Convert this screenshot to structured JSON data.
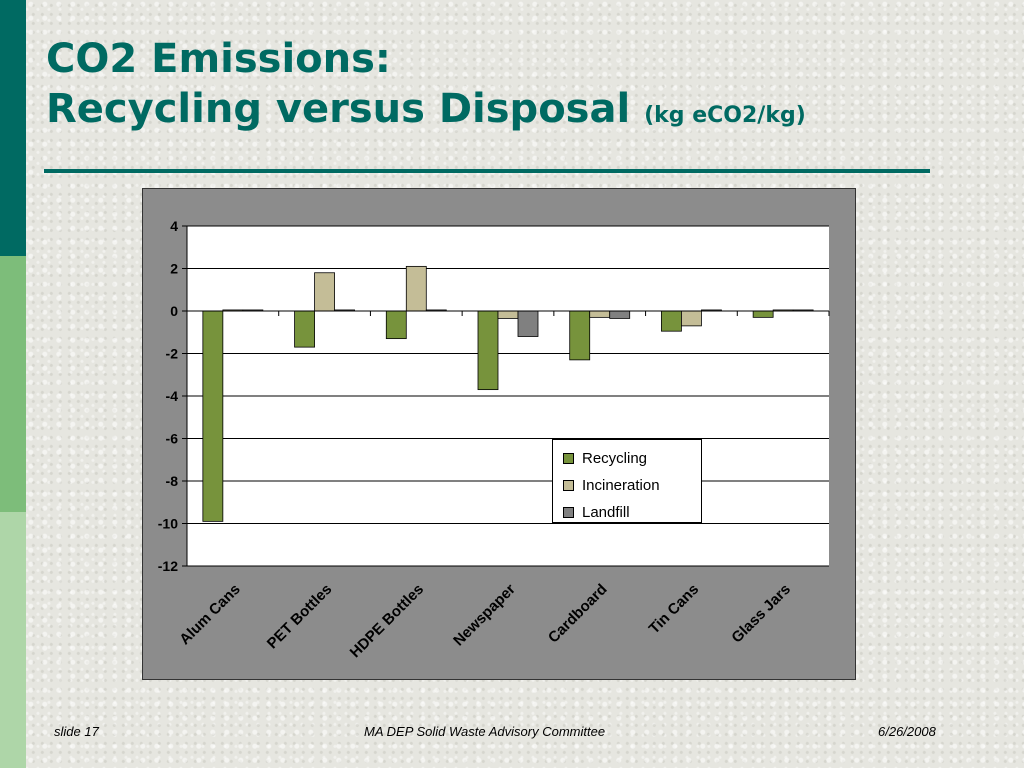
{
  "colors": {
    "side_dark": "#006a62",
    "side_mid": "#7dbd7a",
    "side_light": "#aed6a8",
    "title": "#006a62",
    "rule": "#006a62",
    "recycling": "#77933c",
    "incineration": "#c4bd97",
    "landfill": "#808080"
  },
  "slide": {
    "title_line1": "CO2 Emissions:",
    "title_line2": "Recycling versus Disposal",
    "title_unit": "(kg eCO2/kg)"
  },
  "footer": {
    "slide_label": "slide 17",
    "committee": "MA DEP Solid Waste Advisory Committee",
    "date": "6/26/2008"
  },
  "chart_data": {
    "type": "bar",
    "categories": [
      "Alum Cans",
      "PET Bottles",
      "HDPE Bottles",
      "Newspaper",
      "Cardboard",
      "Tin Cans",
      "Glass Jars"
    ],
    "series": [
      {
        "name": "Recycling",
        "values": [
          -9.9,
          -1.7,
          -1.3,
          -3.7,
          -2.3,
          -0.95,
          -0.3
        ]
      },
      {
        "name": "Incineration",
        "values": [
          0.05,
          1.8,
          2.1,
          -0.35,
          -0.3,
          -0.7,
          0.05
        ]
      },
      {
        "name": "Landfill",
        "values": [
          0.05,
          0.05,
          0.05,
          -1.2,
          -0.35,
          0.05,
          0.05
        ]
      }
    ],
    "ylim": [
      -12,
      4
    ],
    "yticks": [
      4,
      2,
      0,
      -2,
      -4,
      -6,
      -8,
      -10,
      -12
    ],
    "grid": true,
    "legend_position": "bottom-right"
  }
}
